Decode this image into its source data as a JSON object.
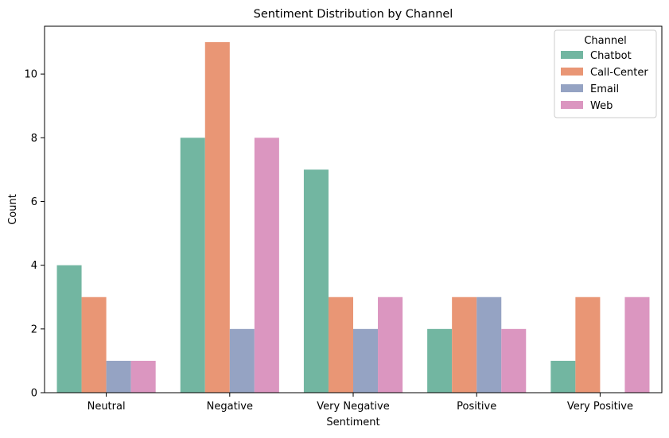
{
  "chart_data": {
    "type": "bar",
    "title": "Sentiment Distribution by Channel",
    "xlabel": "Sentiment",
    "ylabel": "Count",
    "categories": [
      "Neutral",
      "Negative",
      "Very Negative",
      "Positive",
      "Very Positive"
    ],
    "ylim": [
      0,
      11.5
    ],
    "yticks": [
      0,
      2,
      4,
      6,
      8,
      10
    ],
    "grid": false,
    "legend": {
      "title": "Channel",
      "placement": "top-right"
    },
    "series": [
      {
        "name": "Chatbot",
        "color": "#72b6a1",
        "values": [
          4,
          8,
          7,
          2,
          1
        ]
      },
      {
        "name": "Call-Center",
        "color": "#e99675",
        "values": [
          3,
          11,
          3,
          3,
          3
        ]
      },
      {
        "name": "Email",
        "color": "#95a3c3",
        "values": [
          1,
          2,
          2,
          3,
          0
        ]
      },
      {
        "name": "Web",
        "color": "#db96c0",
        "values": [
          1,
          8,
          3,
          2,
          3
        ]
      }
    ]
  }
}
